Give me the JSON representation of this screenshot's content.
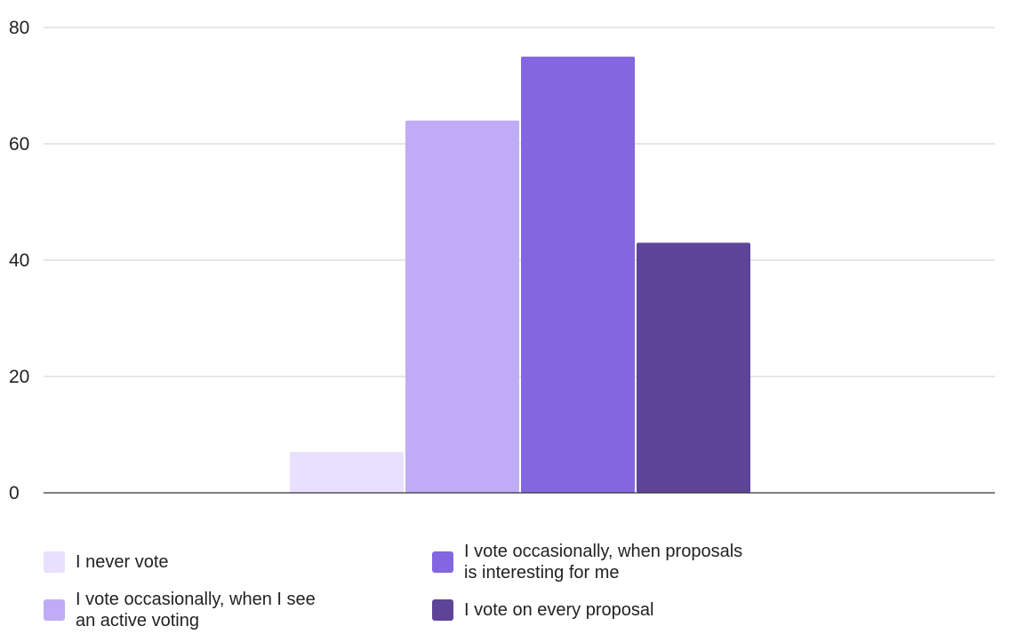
{
  "chart_data": {
    "type": "bar",
    "categories": [
      ""
    ],
    "series": [
      {
        "name": "I never vote",
        "values": [
          7
        ],
        "color": "#E8E0FD"
      },
      {
        "name": "I vote occasionally, when I see\nan active voting",
        "values": [
          64
        ],
        "color": "#C0ACF6"
      },
      {
        "name": "I vote occasionally, when proposals\nis interesting for me",
        "values": [
          75
        ],
        "color": "#8366E0"
      },
      {
        "name": "I vote on every proposal",
        "values": [
          43
        ],
        "color": "#5D4499"
      }
    ],
    "ylim": [
      0,
      80
    ],
    "yticks": [
      0,
      20,
      40,
      60,
      80
    ],
    "grid": true,
    "legend_position": "bottom",
    "title": "",
    "xlabel": "",
    "ylabel": ""
  },
  "colors": {
    "gridline": "#CCCCCC",
    "baseline": "#333333"
  }
}
